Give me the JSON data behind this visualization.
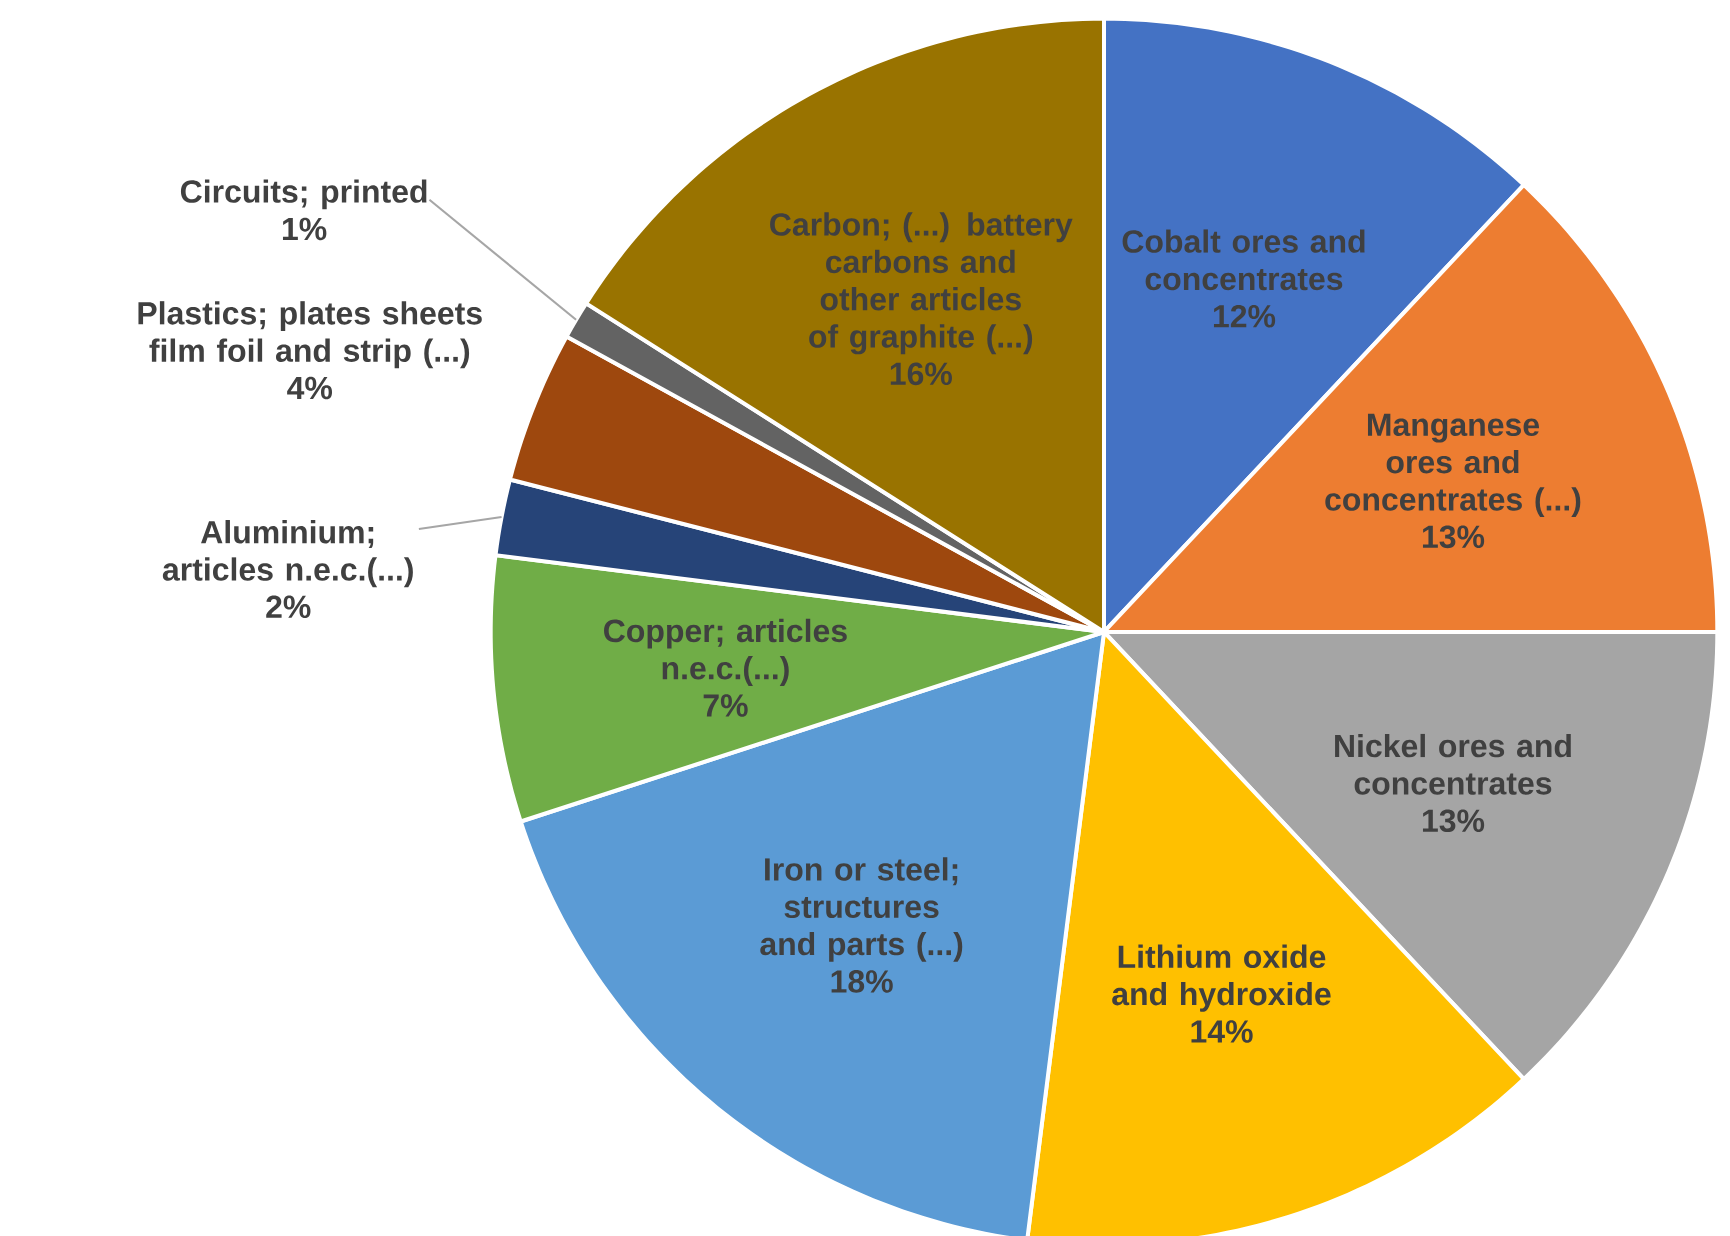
{
  "chart_data": {
    "type": "pie",
    "categories": [
      "Cobalt ores and concentrates",
      "Manganese ores and concentrates (...)",
      "Nickel ores and concentrates",
      "Lithium oxide and hydroxide",
      "Iron or steel; structures and parts (...)",
      "Copper; articles n.e.c.(...)",
      "Aluminium; articles n.e.c.(...)",
      "Plastics; plates sheets film foil and strip (...)",
      "Circuits; printed",
      "Carbon; (...) battery carbons and other articles of graphite (...)"
    ],
    "values": [
      12,
      13,
      13,
      14,
      18,
      7,
      2,
      4,
      1,
      16
    ],
    "value_labels": [
      "12%",
      "13%",
      "13%",
      "14%",
      "18%",
      "7%",
      "2%",
      "4%",
      "1%",
      "16%"
    ],
    "colors": [
      "#4472c4",
      "#ed7d31",
      "#a5a5a5",
      "#ffc000",
      "#5b9bd5",
      "#70ad47",
      "#264478",
      "#9e480e",
      "#636363",
      "#997300"
    ]
  }
}
